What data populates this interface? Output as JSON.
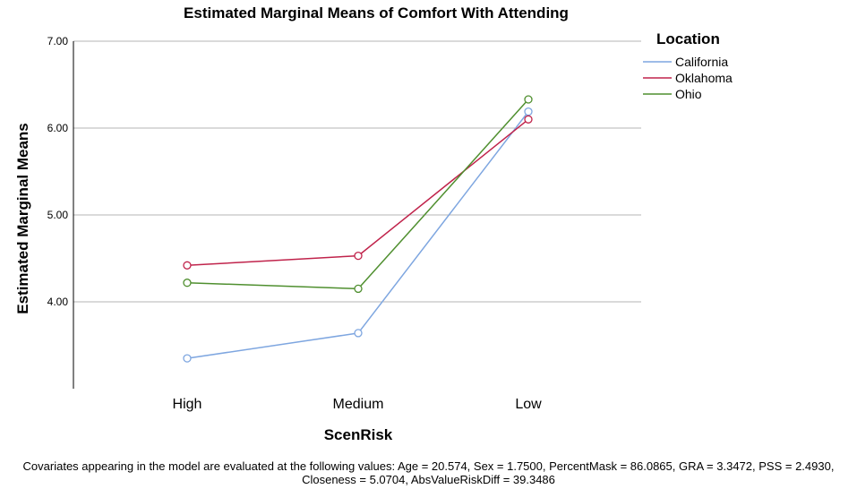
{
  "chart_data": {
    "type": "line",
    "title": "Estimated Marginal Means of Comfort With Attending",
    "xlabel": "ScenRisk",
    "ylabel": "Estimated Marginal Means",
    "categories": [
      "High",
      "Medium",
      "Low"
    ],
    "ylim": [
      3.0,
      7.0
    ],
    "yticks": [
      "4.00",
      "5.00",
      "6.00",
      "7.00"
    ],
    "ytick_values": [
      4,
      5,
      6,
      7
    ],
    "grid": true,
    "legend_title": "Location",
    "legend_position": "top-right",
    "series": [
      {
        "name": "California",
        "color": "#7ea6e0",
        "values": [
          3.35,
          3.64,
          6.19
        ]
      },
      {
        "name": "Oklahoma",
        "color": "#c0234b",
        "values": [
          4.42,
          4.53,
          6.1
        ]
      },
      {
        "name": "Ohio",
        "color": "#4f8f2f",
        "values": [
          4.22,
          4.15,
          6.33
        ]
      }
    ],
    "footnote": "Covariates appearing in the model are evaluated at the following values: Age = 20.574, Sex = 1.7500, PercentMask = 86.0865, GRA = 3.3472, PSS = 2.4930, Closeness = 5.0704, AbsValueRiskDiff = 39.3486"
  }
}
